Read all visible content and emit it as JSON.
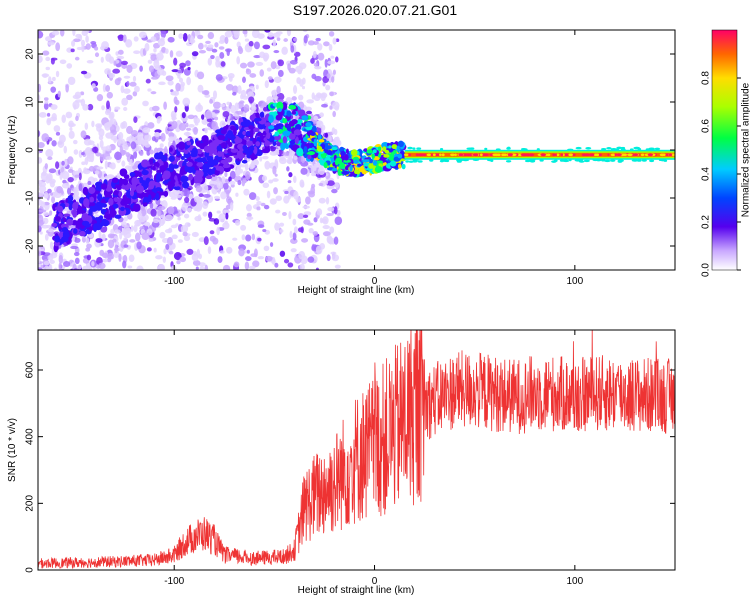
{
  "title": "S197.2026.020.07.21.G01",
  "chart_data": [
    {
      "type": "heatmap",
      "title": "S197.2026.020.07.21.G01",
      "xlabel": "Height of straight line (km)",
      "ylabel": "Frequency (Hz)",
      "xlim": [
        -168,
        150
      ],
      "ylim": [
        -25,
        25
      ],
      "xticks": [
        -100,
        0,
        100
      ],
      "yticks": [
        -20,
        -10,
        0,
        10,
        20
      ],
      "colorbar": {
        "label": "Normalized spectral amplitude",
        "range": [
          0,
          1
        ],
        "ticks": [
          0.0,
          0.2,
          0.4,
          0.6,
          0.8
        ],
        "tick_labels": [
          "0.0",
          "0.2",
          "0.4",
          "0.6",
          "0.8"
        ]
      },
      "ridge": [
        {
          "x": -168,
          "f": -18
        },
        {
          "x": -150,
          "f": -14
        },
        {
          "x": -125,
          "f": -9
        },
        {
          "x": -100,
          "f": -4
        },
        {
          "x": -75,
          "f": 0
        },
        {
          "x": -50,
          "f": 5
        },
        {
          "x": -40,
          "f": 5
        },
        {
          "x": -30,
          "f": 1
        },
        {
          "x": -20,
          "f": -2
        },
        {
          "x": -10,
          "f": -3
        },
        {
          "x": 0,
          "f": -2
        },
        {
          "x": 10,
          "f": -1
        },
        {
          "x": 20,
          "f": -1
        },
        {
          "x": 150,
          "f": -1
        }
      ]
    },
    {
      "type": "line",
      "xlabel": "Height of straight line (km)",
      "ylabel": "SNR (10 * v/v)",
      "xlim": [
        -168,
        150
      ],
      "ylim": [
        0,
        720
      ],
      "xticks": [
        -100,
        0,
        100
      ],
      "yticks": [
        0,
        200,
        400,
        600
      ],
      "color": "#ee3333",
      "series": [
        {
          "name": "SNR",
          "x": [
            -168,
            -150,
            -130,
            -110,
            -100,
            -95,
            -90,
            -85,
            -80,
            -75,
            -60,
            -45,
            -40,
            -35,
            -30,
            -20,
            -10,
            0,
            10,
            20,
            30,
            40,
            50,
            60,
            70,
            80,
            90,
            100,
            110,
            120,
            130,
            140,
            150
          ],
          "values": [
            20,
            22,
            25,
            30,
            45,
            80,
            100,
            110,
            90,
            45,
            35,
            40,
            60,
            190,
            220,
            260,
            330,
            370,
            420,
            480,
            510,
            540,
            540,
            530,
            520,
            530,
            530,
            520,
            530,
            530,
            525,
            525,
            520
          ]
        }
      ]
    }
  ]
}
